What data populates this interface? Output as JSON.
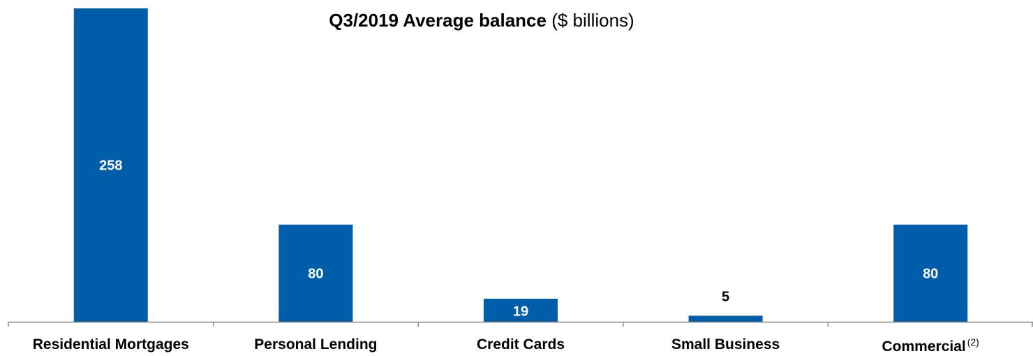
{
  "chart_data": {
    "type": "bar",
    "title": "Q3/2019 Average balance",
    "title_suffix": "($ billions)",
    "categories": [
      "Residential Mortgages",
      "Personal Lending",
      "Credit Cards",
      "Small Business",
      "Commercial"
    ],
    "category_footnotes": [
      "",
      "",
      "",
      "",
      "(2)"
    ],
    "values": [
      258,
      80,
      19,
      5,
      80
    ],
    "bar_color": "#005DAA",
    "grid": false,
    "legend": "none",
    "ylim": [
      0,
      258
    ]
  }
}
